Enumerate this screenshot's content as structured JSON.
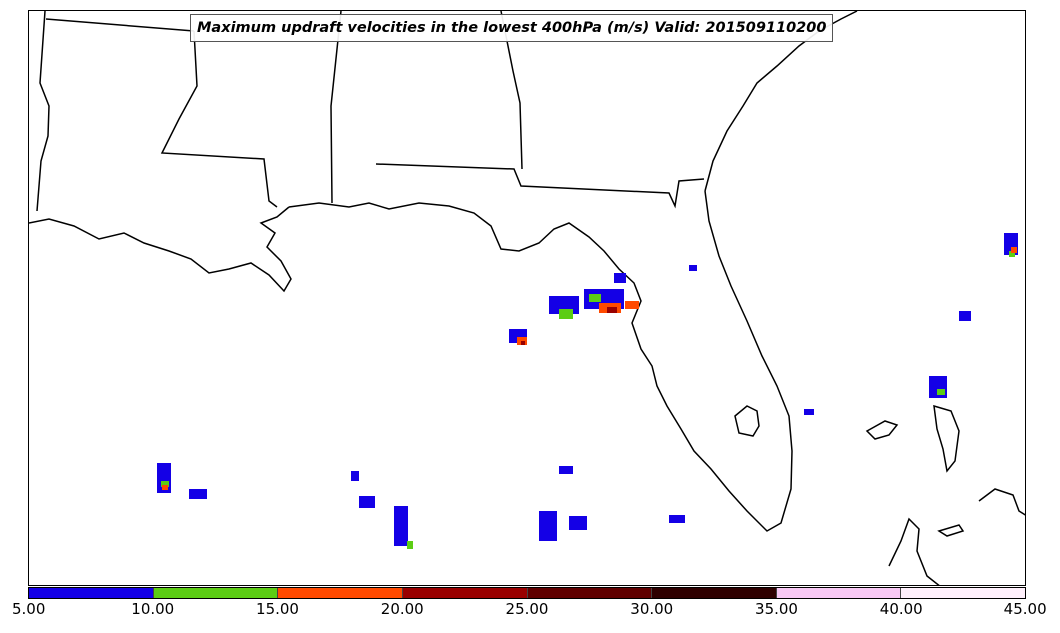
{
  "title": "Maximum updraft velocities in the lowest 400hPa (m/s) Valid: 201509110200",
  "colorbar": {
    "ticks": [
      "5.00",
      "10.00",
      "15.00",
      "20.00",
      "25.00",
      "30.00",
      "35.00",
      "40.00",
      "45.00"
    ],
    "colors": [
      "#1400e6",
      "#5ccd14",
      "#ff4a00",
      "#990000",
      "#600000",
      "#2e0000",
      "#f8c8f4",
      "#fff0fc"
    ]
  },
  "chart_data": {
    "type": "heatmap",
    "title": "Maximum updraft velocities in the lowest 400hPa (m/s) Valid: 201509110200",
    "units": "m/s",
    "color_levels": [
      5,
      10,
      15,
      20,
      25,
      30,
      35,
      40,
      45
    ],
    "color_map": [
      {
        "range": [
          5,
          10
        ],
        "color": "#1400e6"
      },
      {
        "range": [
          10,
          15
        ],
        "color": "#5ccd14"
      },
      {
        "range": [
          15,
          20
        ],
        "color": "#ff4a00"
      },
      {
        "range": [
          20,
          25
        ],
        "color": "#990000"
      },
      {
        "range": [
          25,
          30
        ],
        "color": "#600000"
      },
      {
        "range": [
          30,
          35
        ],
        "color": "#2e0000"
      },
      {
        "range": [
          35,
          40
        ],
        "color": "#f8c8f4"
      },
      {
        "range": [
          40,
          45
        ],
        "color": "#fff0fc"
      }
    ],
    "colorbar_location": "bottom"
  }
}
